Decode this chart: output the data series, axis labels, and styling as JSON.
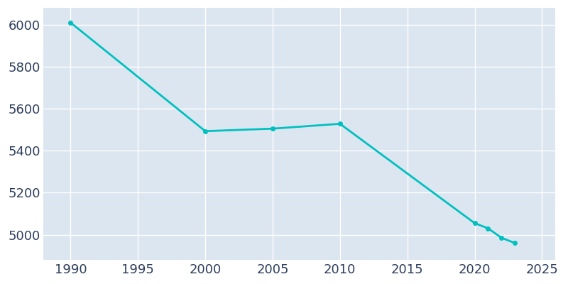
{
  "years": [
    1990,
    2000,
    2005,
    2010,
    2020,
    2021,
    2022,
    2023
  ],
  "population": [
    6010,
    5493,
    5505,
    5528,
    5055,
    5030,
    4985,
    4960
  ],
  "line_color": "#00c0c0",
  "plot_background_color": "#dce6f0",
  "figure_background_color": "#ffffff",
  "grid_color": "#ffffff",
  "text_color": "#2e3f5c",
  "xlim": [
    1988,
    2026
  ],
  "ylim": [
    4880,
    6080
  ],
  "xticks": [
    1990,
    1995,
    2000,
    2005,
    2010,
    2015,
    2020,
    2025
  ],
  "yticks": [
    5000,
    5200,
    5400,
    5600,
    5800,
    6000
  ],
  "linewidth": 2.0,
  "markersize": 4,
  "tick_labelsize": 13
}
